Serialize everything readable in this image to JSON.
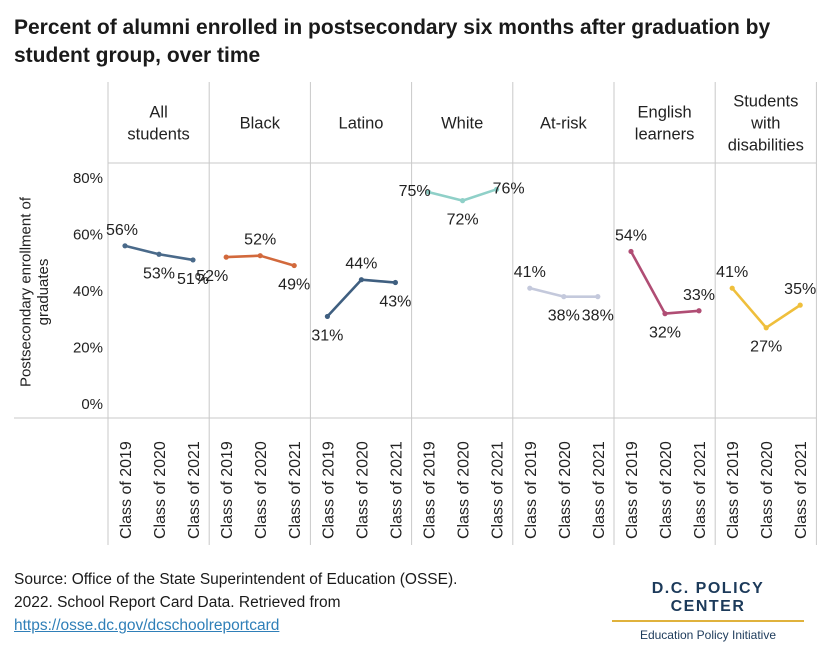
{
  "chart_data": {
    "type": "line",
    "title": "Percent of alumni enrolled in postsecondary six months after graduation by student group, over time",
    "ylabel": "Postsecondary enrollment of graduates",
    "xlabel": "",
    "ylim": [
      0,
      80
    ],
    "yticks": [
      "0%",
      "20%",
      "40%",
      "60%",
      "80%"
    ],
    "ytick_values": [
      0,
      20,
      40,
      60,
      80
    ],
    "categories": [
      "Class of 2019",
      "Class of 2020",
      "Class of 2021"
    ],
    "grid": false,
    "panels": [
      {
        "group": "All students",
        "color": "#4a6a8a",
        "values": [
          56,
          53,
          51
        ],
        "labels": [
          "56%",
          "53%",
          "51%"
        ]
      },
      {
        "group": "Black",
        "color": "#d2693c",
        "values": [
          52,
          52.5,
          49
        ],
        "labels": [
          "52%",
          "52%",
          "49%"
        ]
      },
      {
        "group": "Latino",
        "color": "#3f5f80",
        "values": [
          31,
          44,
          43
        ],
        "labels": [
          "31%",
          "44%",
          "43%"
        ]
      },
      {
        "group": "White",
        "color": "#8fd0c8",
        "values": [
          75,
          72,
          76
        ],
        "labels": [
          "75%",
          "72%",
          "76%"
        ]
      },
      {
        "group": "At-risk",
        "color": "#c4c9dc",
        "values": [
          41,
          38,
          38
        ],
        "labels": [
          "41%",
          "38%",
          "38%"
        ]
      },
      {
        "group": "English learners",
        "color": "#b04d74",
        "values": [
          54,
          32,
          33
        ],
        "labels": [
          "54%",
          "32%",
          "33%"
        ]
      },
      {
        "group": "Students with disabilities",
        "color": "#efbf3c",
        "values": [
          41,
          27,
          35
        ],
        "labels": [
          "41%",
          "27%",
          "35%"
        ]
      }
    ]
  },
  "footer": {
    "source_line1": "Source: Office of the State Superintendent of Education (OSSE).",
    "source_line2": "2022. School Report Card Data. Retrieved from",
    "source_link": "https://osse.dc.gov/dcschoolreportcard",
    "brand_name": "D.C. POLICY CENTER",
    "brand_sub": "Education Policy Initiative"
  }
}
